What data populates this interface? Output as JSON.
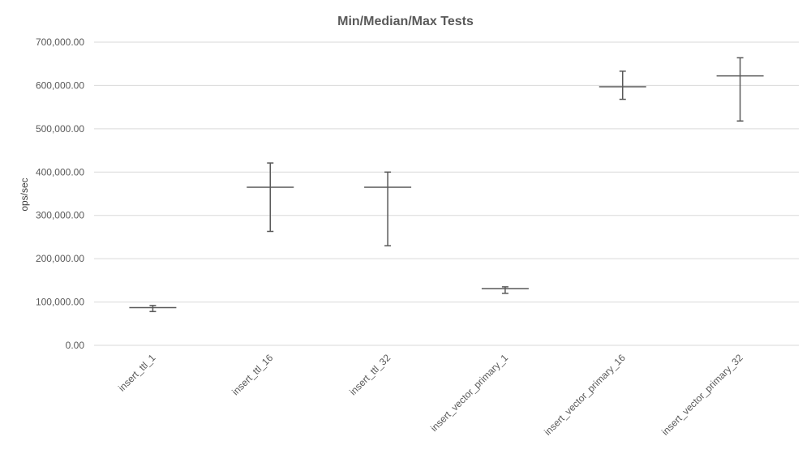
{
  "chart_data": {
    "type": "errorbar",
    "title": "Min/Median/Max Tests",
    "xlabel": "",
    "ylabel": "ops/sec",
    "ylim": [
      0,
      700000
    ],
    "y_ticks": [
      0,
      100000,
      200000,
      300000,
      400000,
      500000,
      600000,
      700000
    ],
    "y_tick_labels": [
      "0.00",
      "100,000.00",
      "200,000.00",
      "300,000.00",
      "400,000.00",
      "500,000.00",
      "600,000.00",
      "700,000.00"
    ],
    "categories": [
      "insert_ttl_1",
      "insert_ttl_16",
      "insert_ttl_32",
      "insert_vector_primary_1",
      "insert_vector_primary_16",
      "insert_vector_primary_32"
    ],
    "series": [
      {
        "min": [
          78000,
          263000,
          230000,
          120000,
          568000,
          518000
        ],
        "median": [
          87000,
          365000,
          365000,
          131000,
          597000,
          622000
        ],
        "max": [
          92000,
          421000,
          400000,
          135000,
          633000,
          664000
        ]
      }
    ],
    "grid": true,
    "legend": "none"
  },
  "colors": {
    "series": "#595959",
    "grid": "#d9d9d9",
    "text": "#595959"
  }
}
